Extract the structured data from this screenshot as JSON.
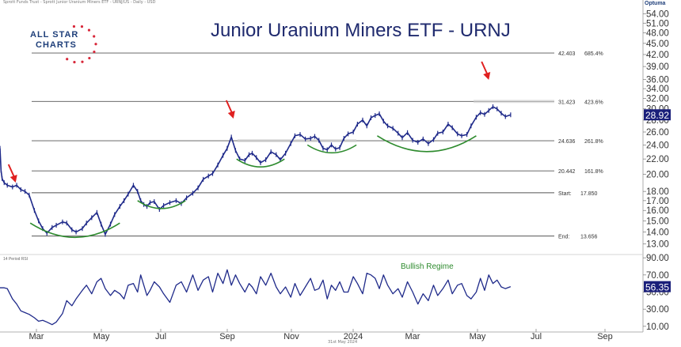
{
  "header": {
    "caption": "Sprott Funds Trust - Sprott Junior Uranium Miners ETF - URNJ/US - Daily - USD",
    "brand": "Optuma",
    "logo_line1": "ALL STAR",
    "logo_line2": "CHARTS",
    "footer_date": "31st May 2024"
  },
  "chart_data": [
    {
      "type": "line",
      "title": "Junior Uranium Miners ETF - URNJ",
      "x_axis": {
        "labels": [
          "Mar",
          "May",
          "Jul",
          "Sep",
          "Nov",
          "2024",
          "Mar",
          "May",
          "Jul",
          "Sep"
        ],
        "range": [
          "2023-01-27",
          "2024-10-05"
        ]
      },
      "y_axis": {
        "scale": "log",
        "range": [
          12.3,
          55.5
        ],
        "ticks": [
          "13.00",
          "14.00",
          "15.00",
          "16.00",
          "17.00",
          "18.00",
          "20.00",
          "22.00",
          "24.00",
          "26.00",
          "28.00",
          "30.00",
          "32.00",
          "34.00",
          "36.00",
          "39.00",
          "42.00",
          "45.00",
          "48.00",
          "51.00",
          "54.00"
        ]
      },
      "last_price": "28.92",
      "price_color": "#1f2a8a",
      "series": [
        {
          "x": [
            "2023-01-27",
            "2023-01-28",
            "2023-01-29",
            "2023-01-31",
            "2023-02-03",
            "2023-02-08",
            "2023-02-12",
            "2023-02-16",
            "2023-02-20",
            "2023-02-24",
            "2023-03-01",
            "2023-03-05",
            "2023-03-09",
            "2023-03-13",
            "2023-03-18",
            "2023-03-22",
            "2023-03-28",
            "2023-04-01",
            "2023-04-06",
            "2023-04-10",
            "2023-04-16",
            "2023-04-20",
            "2023-04-25",
            "2023-04-30",
            "2023-05-04",
            "2023-05-08",
            "2023-05-13",
            "2023-05-17",
            "2023-05-22",
            "2023-05-26",
            "2023-05-30",
            "2023-06-04",
            "2023-06-08",
            "2023-06-11",
            "2023-06-14",
            "2023-06-17",
            "2023-06-20",
            "2023-06-24",
            "2023-06-29",
            "2023-07-03",
            "2023-07-09",
            "2023-07-15",
            "2023-07-20",
            "2023-07-25",
            "2023-07-31",
            "2023-08-05",
            "2023-08-10",
            "2023-08-15",
            "2023-08-19",
            "2023-08-24",
            "2023-08-29",
            "2023-09-02",
            "2023-09-06",
            "2023-09-10",
            "2023-09-14",
            "2023-09-19",
            "2023-09-23",
            "2023-09-26",
            "2023-09-30",
            "2023-10-04",
            "2023-10-09",
            "2023-10-14",
            "2023-10-19",
            "2023-10-23",
            "2023-10-28",
            "2023-11-02",
            "2023-11-06",
            "2023-11-11",
            "2023-11-16",
            "2023-11-21",
            "2023-11-25",
            "2023-11-29",
            "2023-12-03",
            "2023-12-07",
            "2023-12-11",
            "2023-12-15",
            "2023-12-19",
            "2023-12-23",
            "2023-12-27",
            "2024-01-01",
            "2024-01-05",
            "2024-01-10",
            "2024-01-14",
            "2024-01-18",
            "2024-01-22",
            "2024-01-26",
            "2024-01-30",
            "2024-02-03",
            "2024-02-08",
            "2024-02-13",
            "2024-02-17",
            "2024-02-22",
            "2024-02-27",
            "2024-03-03",
            "2024-03-08",
            "2024-03-13",
            "2024-03-18",
            "2024-03-22",
            "2024-03-27",
            "2024-04-01",
            "2024-04-05",
            "2024-04-10",
            "2024-04-14",
            "2024-04-19",
            "2024-04-23",
            "2024-04-28",
            "2024-05-02",
            "2024-05-06",
            "2024-05-10",
            "2024-05-14",
            "2024-05-18",
            "2024-05-22",
            "2024-05-26",
            "2024-05-31"
          ],
          "values": [
            23.5,
            20.5,
            19.5,
            19.0,
            18.7,
            18.5,
            18.7,
            18.2,
            18.0,
            17.6,
            16.0,
            15.0,
            14.3,
            13.9,
            14.4,
            14.6,
            14.9,
            14.8,
            14.2,
            14.0,
            14.3,
            14.8,
            15.3,
            15.8,
            14.7,
            13.8,
            14.7,
            15.6,
            16.4,
            17.0,
            17.7,
            18.7,
            18.0,
            17.0,
            16.6,
            16.4,
            16.8,
            16.9,
            16.1,
            16.5,
            16.8,
            17.0,
            16.7,
            17.3,
            17.8,
            18.4,
            19.4,
            19.8,
            20.1,
            21.2,
            22.5,
            23.5,
            25.2,
            23.2,
            22.0,
            21.8,
            22.6,
            22.8,
            22.2,
            21.5,
            21.9,
            23.0,
            22.6,
            21.9,
            22.8,
            24.2,
            25.4,
            25.6,
            24.9,
            25.0,
            25.3,
            24.7,
            23.5,
            23.3,
            24.0,
            23.4,
            23.6,
            25.0,
            25.7,
            26.0,
            27.3,
            28.0,
            27.0,
            28.4,
            28.8,
            29.1,
            27.8,
            27.0,
            26.6,
            25.8,
            25.1,
            25.9,
            24.7,
            24.4,
            24.9,
            24.2,
            24.8,
            25.8,
            26.0,
            27.3,
            26.7,
            25.7,
            25.4,
            25.6,
            27.0,
            28.5,
            29.3,
            29.0,
            29.7,
            30.4,
            30.0,
            29.2,
            28.6,
            28.92
          ]
        },
        {
          "name": "Start",
          "values": [
            17.85
          ],
          "label": "Start:",
          "value_label": "17.850"
        },
        {
          "name": "End",
          "values": [
            13.656
          ],
          "label": "End:",
          "value_label": "13.656"
        },
        {
          "name": "Fibonacci extensions",
          "levels": [
            {
              "value": 42.403,
              "value_label": "42.403",
              "pct": "685.4%"
            },
            {
              "value": 31.423,
              "value_label": "31.423",
              "pct": "423.6%"
            },
            {
              "value": 24.636,
              "value_label": "24.636",
              "pct": "261.8%"
            },
            {
              "value": 20.442,
              "value_label": "20.442",
              "pct": "161.8%"
            }
          ]
        }
      ],
      "annotations": {
        "arrows": [
          "2023-02-11",
          "2023-09-08",
          "2024-05-10"
        ],
        "arrow_color": "#e02020",
        "arcs": [
          {
            "from": "2023-02-25",
            "to": "2023-05-22",
            "level": 14.8
          },
          {
            "from": "2023-06-08",
            "to": "2023-07-24",
            "level": 17.0
          },
          {
            "from": "2023-09-11",
            "to": "2023-10-27",
            "level": 22.0
          },
          {
            "from": "2023-11-18",
            "to": "2024-01-04",
            "level": 24.0
          },
          {
            "from": "2024-01-24",
            "to": "2024-04-28",
            "level": 25.4
          }
        ],
        "arc_color": "#2e8b2e"
      }
    },
    {
      "type": "line",
      "title": "14 Period RSI",
      "annotation": "Bullish Regime",
      "annotation_color": "#2e8b2e",
      "y_axis": {
        "range": [
          8,
          92
        ],
        "ticks": [
          "10.00",
          "30.00",
          "50.00",
          "70.00",
          "90.00"
        ]
      },
      "last_value": "56.35",
      "series": [
        {
          "values": [
            55,
            55,
            55,
            55,
            54,
            42,
            36,
            28,
            26,
            24,
            20,
            16,
            17,
            15,
            12,
            15,
            25,
            40,
            34,
            42,
            52,
            58,
            48,
            62,
            66,
            54,
            46,
            52,
            48,
            42,
            58,
            60,
            50,
            70,
            58,
            46,
            52,
            62,
            56,
            48,
            38,
            58,
            62,
            50,
            70,
            52,
            64,
            68,
            50,
            72,
            60,
            76,
            58,
            70,
            60,
            50,
            60,
            56,
            48,
            68,
            58,
            72,
            56,
            48,
            56,
            44,
            60,
            46,
            56,
            66,
            52,
            54,
            64,
            42,
            58,
            52,
            62,
            50,
            50,
            68,
            60,
            48,
            72,
            70,
            66,
            54,
            70,
            58,
            48,
            54,
            44,
            62,
            50,
            36,
            48,
            40,
            58,
            46,
            54,
            64,
            48,
            58,
            60,
            46,
            42,
            50,
            66,
            52,
            70,
            60,
            64,
            56,
            54,
            56.35
          ]
        }
      ]
    }
  ]
}
